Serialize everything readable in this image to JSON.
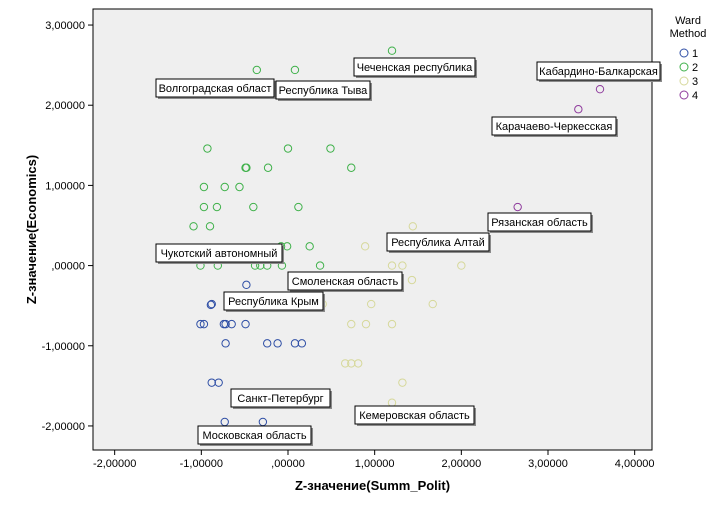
{
  "chart_data": {
    "type": "scatter",
    "title": "",
    "xlabel": "Z-значение(Summ_Polit)",
    "ylabel": "Z-значение(Economics)",
    "xlim": [
      -2.25,
      4.2
    ],
    "ylim": [
      -2.3,
      3.2
    ],
    "x_ticks": [
      -2.0,
      -1.0,
      0.0,
      1.0,
      2.0,
      3.0,
      4.0
    ],
    "x_tick_labels": [
      "-2,00000",
      "-1,00000",
      ",00000",
      "1,00000",
      "2,00000",
      "3,00000",
      "4,00000"
    ],
    "y_ticks": [
      -2.0,
      -1.0,
      0.0,
      1.0,
      2.0,
      3.0
    ],
    "y_tick_labels": [
      "-2,00000",
      "-1,00000",
      ",00000",
      "1,00000",
      "2,00000",
      "3,00000"
    ],
    "grid": false,
    "plot_background": "#efefef",
    "legend_title": [
      "Ward",
      "Method"
    ],
    "legend_placement": "right",
    "series": [
      {
        "name": "1",
        "color": "#2e4ea5",
        "points": [
          [
            -0.48,
            -0.24
          ],
          [
            -0.88,
            -0.48
          ],
          [
            -0.89,
            -0.49
          ],
          [
            -1.01,
            -0.73
          ],
          [
            -0.97,
            -0.73
          ],
          [
            -0.74,
            -0.73
          ],
          [
            -0.72,
            -0.73
          ],
          [
            -0.65,
            -0.73
          ],
          [
            -0.49,
            -0.73
          ],
          [
            -0.72,
            -0.97
          ],
          [
            -0.24,
            -0.97
          ],
          [
            -0.12,
            -0.97
          ],
          [
            0.08,
            -0.97
          ],
          [
            0.16,
            -0.97
          ],
          [
            -0.88,
            -1.46
          ],
          [
            -0.8,
            -1.46
          ],
          [
            -0.73,
            -1.95
          ],
          [
            -0.29,
            -1.95
          ]
        ]
      },
      {
        "name": "2",
        "color": "#3fb14a",
        "points": [
          [
            1.2,
            2.68
          ],
          [
            -0.36,
            2.44
          ],
          [
            0.08,
            2.44
          ],
          [
            -0.93,
            1.46
          ],
          [
            0.0,
            1.46
          ],
          [
            0.49,
            1.46
          ],
          [
            -0.49,
            1.22
          ],
          [
            -0.48,
            1.22
          ],
          [
            -0.23,
            1.22
          ],
          [
            0.73,
            1.22
          ],
          [
            -0.97,
            0.98
          ],
          [
            -0.73,
            0.98
          ],
          [
            -0.56,
            0.98
          ],
          [
            -0.97,
            0.73
          ],
          [
            -0.82,
            0.73
          ],
          [
            -0.4,
            0.73
          ],
          [
            0.12,
            0.73
          ],
          [
            -1.09,
            0.49
          ],
          [
            -0.9,
            0.49
          ],
          [
            -0.08,
            0.24
          ],
          [
            -0.01,
            0.24
          ],
          [
            0.25,
            0.24
          ],
          [
            -1.01,
            0.0
          ],
          [
            -0.81,
            0.0
          ],
          [
            -0.38,
            0.0
          ],
          [
            -0.32,
            0.0
          ],
          [
            -0.24,
            0.0
          ],
          [
            -0.07,
            0.0
          ],
          [
            0.37,
            0.0
          ]
        ]
      },
      {
        "name": "3",
        "color": "#d6d89a",
        "points": [
          [
            1.44,
            0.49
          ],
          [
            0.89,
            0.24
          ],
          [
            1.2,
            0.0
          ],
          [
            1.32,
            0.0
          ],
          [
            2.0,
            0.0
          ],
          [
            1.43,
            -0.18
          ],
          [
            0.4,
            -0.48
          ],
          [
            0.96,
            -0.48
          ],
          [
            1.67,
            -0.48
          ],
          [
            0.73,
            -0.73
          ],
          [
            0.9,
            -0.73
          ],
          [
            1.2,
            -0.73
          ],
          [
            0.66,
            -1.22
          ],
          [
            0.73,
            -1.22
          ],
          [
            0.81,
            -1.22
          ],
          [
            1.32,
            -1.46
          ],
          [
            1.2,
            -1.71
          ]
        ]
      },
      {
        "name": "4",
        "color": "#8e3a9c",
        "points": [
          [
            3.6,
            2.2
          ],
          [
            3.35,
            1.95
          ],
          [
            2.65,
            0.73
          ]
        ]
      }
    ],
    "annotations": [
      {
        "text": "Чеченская республика",
        "x": 1.2,
        "y": 2.68
      },
      {
        "text": "Волгоградская област",
        "x": -0.36,
        "y": 2.44
      },
      {
        "text": "Республика Тыва",
        "x": 0.08,
        "y": 2.44
      },
      {
        "text": "Кабардино-Балкарская",
        "x": 3.6,
        "y": 2.2
      },
      {
        "text": "Карачаево-Черкесская",
        "x": 3.35,
        "y": 1.95
      },
      {
        "text": "Рязанская область",
        "x": 2.65,
        "y": 0.73
      },
      {
        "text": "Республика Алтай",
        "x": 1.44,
        "y": 0.49
      },
      {
        "text": "Чукотский автономный",
        "x": -0.82,
        "y": 0.24
      },
      {
        "text": "Смоленская область",
        "x": 0.37,
        "y": 0.0
      },
      {
        "text": "Республика Крым",
        "x": -0.48,
        "y": -0.24
      },
      {
        "text": "Санкт-Петербург",
        "x": -0.73,
        "y": -1.46
      },
      {
        "text": "Кемеровская область",
        "x": 1.2,
        "y": -1.71
      },
      {
        "text": "Московская область",
        "x": -0.73,
        "y": -1.95
      }
    ]
  }
}
